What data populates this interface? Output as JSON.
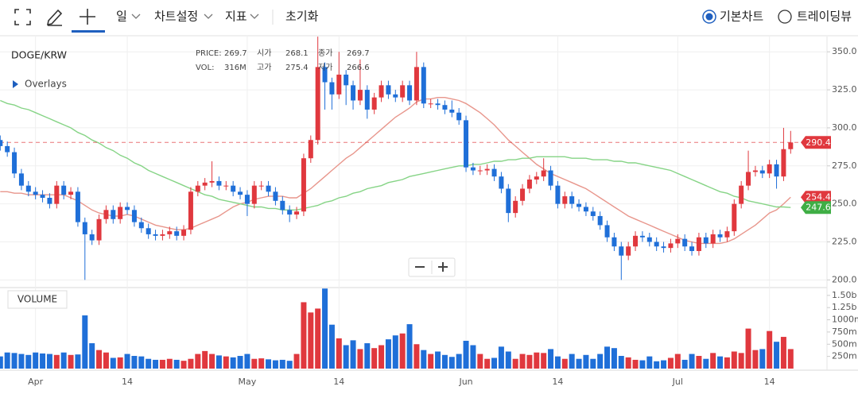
{
  "toolbar": {
    "items": [
      "일",
      "차트설정",
      "지표",
      "초기화"
    ],
    "chart_types": [
      "기본차트",
      "트레이딩뷰"
    ]
  },
  "chart_data": {
    "type": "candlestick",
    "title": "DOGE/KRW",
    "overlays_label": "Overlays",
    "info": [
      {
        "label": "PRICE:",
        "value": 269.7
      },
      {
        "label": "시가",
        "value": 268.1
      },
      {
        "label": "종가",
        "value": 269.7
      },
      {
        "label": "VOL:",
        "value": "316M"
      },
      {
        "label": "고가",
        "value": 275.4
      },
      {
        "label": "저가",
        "value": 266.6
      }
    ],
    "categories": [
      null,
      null,
      null,
      null,
      null,
      "Apr",
      null,
      null,
      null,
      null,
      null,
      null,
      null,
      null,
      null,
      null,
      null,
      null,
      "14",
      null,
      null,
      null,
      null,
      null,
      null,
      null,
      null,
      null,
      null,
      null,
      null,
      null,
      null,
      null,
      null,
      "May",
      null,
      null,
      null,
      null,
      null,
      null,
      null,
      null,
      null,
      null,
      null,
      null,
      "14",
      null,
      null,
      null,
      null,
      null,
      null,
      null,
      null,
      null,
      null,
      null,
      null,
      null,
      null,
      null,
      null,
      null,
      "Jun",
      null,
      null,
      null,
      null,
      null,
      null,
      null,
      null,
      null,
      null,
      null,
      null,
      "14",
      null,
      null,
      null,
      null,
      null,
      null,
      null,
      null,
      null,
      null,
      null,
      null,
      null,
      null,
      null,
      null,
      "Jul",
      null,
      null,
      null,
      null,
      null,
      null,
      null,
      null,
      null,
      null,
      null,
      null,
      "14",
      null,
      null,
      null
    ],
    "open": [
      292,
      288,
      284,
      270,
      262,
      258,
      256,
      254,
      250,
      262,
      256,
      258,
      238,
      230,
      226,
      240,
      246,
      240,
      248,
      246,
      238,
      234,
      230,
      229,
      230,
      232,
      229,
      233,
      258,
      262,
      264,
      265,
      262,
      262,
      258,
      256,
      250,
      262,
      262,
      258,
      252,
      246,
      243,
      245,
      280,
      292,
      340,
      330,
      322,
      335,
      328,
      318,
      325,
      312,
      320,
      328,
      322,
      320,
      328,
      318,
      340,
      316,
      316,
      315,
      312,
      310,
      305,
      274,
      272,
      272,
      273,
      268,
      260,
      244,
      252,
      260,
      266,
      268,
      272,
      262,
      250,
      255,
      250,
      248,
      245,
      242,
      236,
      228,
      222,
      216,
      222,
      229,
      228,
      225,
      222,
      221,
      224,
      227,
      222,
      219,
      228,
      224,
      230,
      228,
      232,
      250,
      262,
      271,
      272,
      270,
      276,
      268,
      286
    ],
    "high": [
      295,
      291,
      287,
      273,
      265,
      261,
      259,
      257,
      265,
      265,
      261,
      261,
      241,
      233,
      243,
      249,
      249,
      251,
      251,
      249,
      241,
      237,
      233,
      233,
      235,
      235,
      236,
      261,
      265,
      267,
      278,
      268,
      265,
      265,
      261,
      259,
      265,
      265,
      265,
      261,
      255,
      249,
      248,
      283,
      295,
      360,
      343,
      333,
      350,
      338,
      331,
      345,
      328,
      323,
      331,
      331,
      325,
      331,
      331,
      350,
      343,
      319,
      319,
      318,
      318,
      313,
      308,
      277,
      275,
      276,
      276,
      271,
      263,
      255,
      263,
      269,
      271,
      280,
      275,
      265,
      258,
      258,
      253,
      251,
      248,
      245,
      239,
      231,
      225,
      225,
      232,
      232,
      231,
      228,
      225,
      227,
      230,
      230,
      225,
      231,
      231,
      233,
      233,
      235,
      253,
      265,
      285,
      275,
      275,
      279,
      279,
      300,
      298
    ],
    "low": [
      285,
      281,
      267,
      259,
      255,
      253,
      251,
      247,
      247,
      253,
      253,
      235,
      200,
      223,
      223,
      237,
      237,
      237,
      243,
      235,
      231,
      227,
      226,
      226,
      227,
      226,
      226,
      230,
      255,
      259,
      261,
      259,
      259,
      255,
      253,
      242,
      247,
      259,
      255,
      249,
      243,
      238,
      240,
      242,
      277,
      289,
      312,
      312,
      319,
      315,
      312,
      315,
      306,
      309,
      317,
      319,
      317,
      317,
      315,
      315,
      313,
      313,
      312,
      309,
      307,
      302,
      271,
      269,
      269,
      269,
      265,
      257,
      238,
      241,
      249,
      257,
      263,
      265,
      259,
      247,
      247,
      247,
      245,
      242,
      239,
      233,
      225,
      219,
      200,
      213,
      219,
      225,
      222,
      219,
      218,
      218,
      221,
      219,
      216,
      216,
      221,
      221,
      225,
      225,
      229,
      247,
      259,
      268,
      267,
      267,
      260,
      265,
      283
    ],
    "close": [
      288,
      284,
      270,
      262,
      258,
      256,
      254,
      250,
      262,
      256,
      258,
      238,
      230,
      226,
      240,
      246,
      240,
      248,
      246,
      238,
      234,
      230,
      229,
      230,
      232,
      229,
      233,
      258,
      262,
      264,
      265,
      262,
      262,
      258,
      256,
      250,
      262,
      262,
      258,
      252,
      246,
      243,
      245,
      280,
      292,
      340,
      330,
      322,
      335,
      328,
      318,
      325,
      312,
      320,
      328,
      322,
      320,
      328,
      318,
      340,
      316,
      316,
      315,
      312,
      310,
      305,
      274,
      272,
      272,
      273,
      268,
      260,
      244,
      252,
      260,
      266,
      268,
      272,
      262,
      250,
      255,
      250,
      248,
      245,
      242,
      236,
      228,
      222,
      216,
      222,
      229,
      228,
      225,
      222,
      221,
      224,
      227,
      222,
      219,
      228,
      224,
      230,
      228,
      232,
      250,
      262,
      271,
      272,
      270,
      276,
      268,
      286,
      290.4
    ],
    "up_color": "#e0383e",
    "down_color": "#1f6fd8",
    "price_line": true,
    "grid": true,
    "ylim": [
      196,
      359
    ],
    "yticks": [
      {
        "value": 200,
        "label": "200.0"
      },
      {
        "value": 225,
        "label": "225.0"
      },
      {
        "value": 250,
        "label": "250.0"
      },
      {
        "value": 275,
        "label": "275.0"
      },
      {
        "value": 300,
        "label": "300.0"
      },
      {
        "value": 325,
        "label": "325.0"
      },
      {
        "value": 350,
        "label": "350.0"
      }
    ],
    "overlays": [
      {
        "color": "#e8968c",
        "label_color": "#e0383e",
        "values": [
          258,
          258,
          257,
          257,
          256,
          256,
          256,
          256,
          256,
          256,
          254,
          252,
          249,
          246,
          244,
          243,
          242,
          242,
          243,
          242,
          240,
          238,
          236,
          235,
          234,
          233,
          233,
          234,
          236,
          238,
          240,
          242,
          245,
          248,
          250,
          251,
          253,
          254,
          255,
          255,
          255,
          254,
          254,
          257,
          260,
          264,
          268,
          272,
          276,
          280,
          283,
          287,
          291,
          295,
          299,
          303,
          307,
          310,
          313,
          317,
          319,
          319,
          320,
          320,
          319,
          318,
          316,
          313,
          310,
          306,
          302,
          297,
          292,
          288,
          284,
          280,
          276,
          273,
          270,
          268,
          266,
          264,
          262,
          260,
          257,
          254,
          251,
          248,
          245,
          242,
          240,
          238,
          236,
          234,
          232,
          230,
          228,
          226,
          225,
          224,
          224,
          224,
          224,
          225,
          227,
          230,
          233,
          236,
          240,
          244,
          246,
          250,
          254.4
        ]
      },
      {
        "color": "#86d486",
        "label_color": "#3fae45",
        "values": [
          318,
          316,
          315,
          313,
          312,
          310,
          308,
          306,
          304,
          302,
          300,
          297,
          295,
          292,
          290,
          287,
          285,
          282,
          280,
          277,
          275,
          272,
          270,
          268,
          266,
          264,
          262,
          260,
          258,
          256,
          255,
          253,
          252,
          251,
          250,
          249,
          248,
          248,
          247,
          247,
          246,
          246,
          246,
          247,
          248,
          249,
          251,
          252,
          254,
          255,
          257,
          258,
          260,
          261,
          262,
          264,
          265,
          266,
          268,
          269,
          270,
          271,
          272,
          273,
          274,
          275,
          275,
          276,
          276,
          277,
          278,
          278,
          279,
          279,
          280,
          280,
          281,
          281,
          281,
          281,
          281,
          280,
          280,
          280,
          279,
          279,
          279,
          278,
          278,
          277,
          277,
          276,
          275,
          274,
          273,
          272,
          270,
          268,
          266,
          264,
          262,
          260,
          258,
          257,
          255,
          254,
          252,
          251,
          250,
          249,
          248,
          248,
          247.6
        ]
      }
    ],
    "volume": {
      "label": "VOLUME",
      "values": [
        250,
        330,
        320,
        300,
        280,
        330,
        310,
        300,
        280,
        330,
        280,
        290,
        1090,
        520,
        380,
        330,
        220,
        230,
        300,
        260,
        250,
        200,
        180,
        180,
        200,
        180,
        160,
        200,
        300,
        360,
        300,
        270,
        250,
        230,
        260,
        300,
        200,
        210,
        190,
        170,
        180,
        160,
        300,
        1360,
        1150,
        1230,
        1640,
        900,
        620,
        480,
        580,
        400,
        520,
        420,
        480,
        600,
        680,
        720,
        910,
        500,
        380,
        300,
        350,
        280,
        240,
        300,
        570,
        480,
        300,
        200,
        220,
        450,
        350,
        200,
        300,
        280,
        330,
        320,
        400,
        250,
        200,
        300,
        200,
        280,
        200,
        300,
        450,
        420,
        260,
        230,
        180,
        170,
        250,
        150,
        170,
        220,
        300,
        180,
        300,
        260,
        200,
        320,
        250,
        230,
        350,
        320,
        820,
        380,
        400,
        770,
        550,
        650,
        400
      ],
      "ylim": [
        0,
        1660
      ],
      "yticks": [
        {
          "value": 250,
          "label": "250m"
        },
        {
          "value": 500,
          "label": "500m"
        },
        {
          "value": 750,
          "label": "750m"
        },
        {
          "value": 1000,
          "label": "1000m"
        },
        {
          "value": 1250,
          "label": "1.25b"
        },
        {
          "value": 1500,
          "label": "1.50b"
        }
      ]
    }
  }
}
